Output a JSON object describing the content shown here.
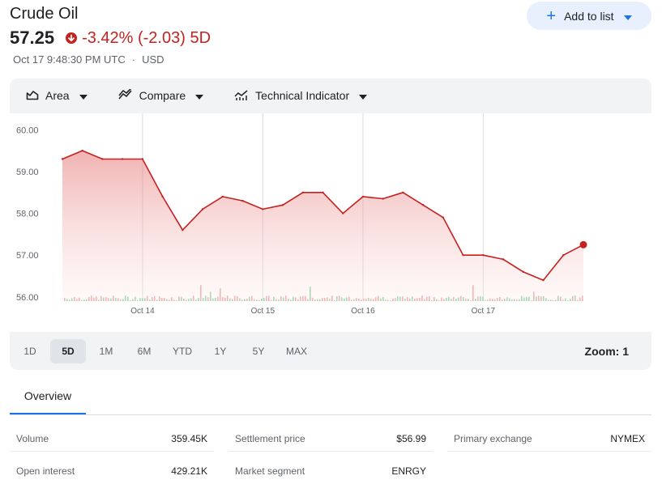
{
  "header": {
    "title": "Crude Oil",
    "price": "57.25",
    "change": "-3.42% (-2.03) 5D",
    "timestamp": "Oct 17 9:48:30 PM UTC",
    "separator": "·",
    "currency": "USD",
    "add_to_list": "Add to list"
  },
  "toolbar": {
    "area": "Area",
    "compare": "Compare",
    "technical": "Technical Indicator"
  },
  "ranges": [
    "1D",
    "5D",
    "1M",
    "6M",
    "YTD",
    "1Y",
    "5Y",
    "MAX"
  ],
  "active_range": "5D",
  "zoom": "Zoom: 1",
  "tabs": {
    "overview": "Overview"
  },
  "stats": {
    "volume": {
      "label": "Volume",
      "value": "359.45K"
    },
    "open_interest": {
      "label": "Open interest",
      "value": "429.21K"
    },
    "settlement": {
      "label": "Settlement price",
      "value": "$56.99"
    },
    "segment": {
      "label": "Market segment",
      "value": "ENRGY"
    },
    "exchange": {
      "label": "Primary exchange",
      "value": "NYMEX"
    }
  },
  "colors": {
    "down": "#c5221f",
    "accent": "#1a73e8"
  },
  "chart_data": {
    "type": "area",
    "x": [
      "Oct 13 00:00",
      "Oct 13 06:00",
      "Oct 13 12:00",
      "Oct 13 18:00",
      "Oct 14 00:00",
      "Oct 14 03:00",
      "Oct 14 06:00",
      "Oct 14 09:00",
      "Oct 14 12:00",
      "Oct 14 18:00",
      "Oct 15 00:00",
      "Oct 15 06:00",
      "Oct 15 09:00",
      "Oct 15 12:00",
      "Oct 15 18:00",
      "Oct 16 00:00",
      "Oct 16 06:00",
      "Oct 16 09:00",
      "Oct 16 12:00",
      "Oct 16 15:00",
      "Oct 16 18:00",
      "Oct 17 00:00",
      "Oct 17 06:00",
      "Oct 17 09:00",
      "Oct 17 12:00",
      "Oct 17 18:00",
      "Oct 17 21:48"
    ],
    "y": [
      59.3,
      59.5,
      59.3,
      59.3,
      59.3,
      58.4,
      57.6,
      58.1,
      58.4,
      58.3,
      58.1,
      58.2,
      58.5,
      58.5,
      58.0,
      58.4,
      58.35,
      58.5,
      58.2,
      57.9,
      57.0,
      57.0,
      56.9,
      56.6,
      56.4,
      57.0,
      57.25
    ],
    "x_ticks": [
      "Oct 14",
      "Oct 15",
      "Oct 16",
      "Oct 17"
    ],
    "y_ticks": [
      "60.00",
      "59.00",
      "58.00",
      "57.00",
      "56.00"
    ],
    "ylim": [
      55.9,
      60.2
    ],
    "grid": "vertical",
    "volume_bars": true
  }
}
